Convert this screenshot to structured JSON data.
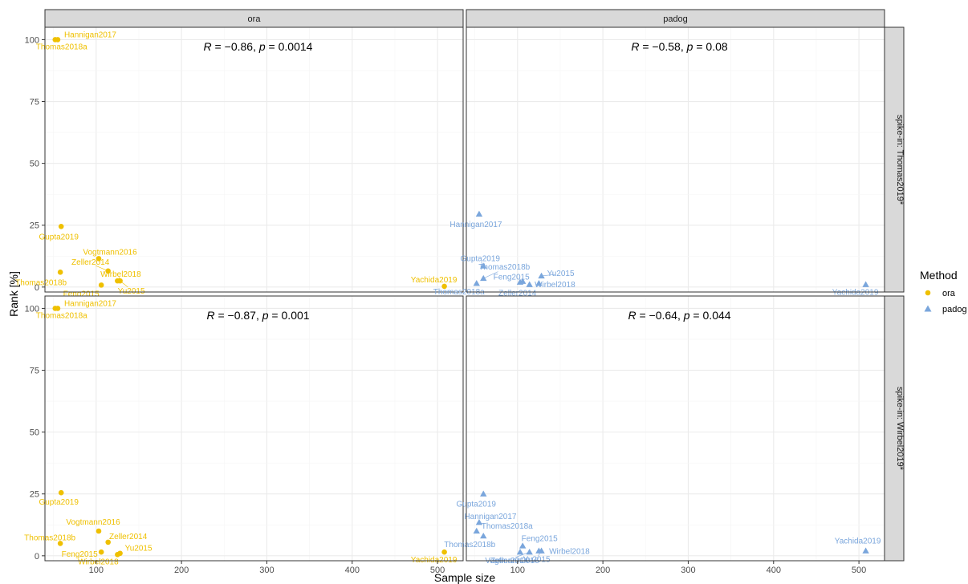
{
  "chart_data": {
    "type": "scatter",
    "xlabel": "Sample size",
    "ylabel": "Rank [%]",
    "xlim": [
      40,
      530
    ],
    "ylim": [
      -2,
      105
    ],
    "x_ticks": [
      100,
      200,
      300,
      400,
      500
    ],
    "y_ticks": [
      0,
      25,
      50,
      75,
      100
    ],
    "grid": true,
    "column_facets": [
      "ora",
      "padog"
    ],
    "row_facets": [
      "spike-in: Thomas2019*",
      "spike-in: Wirbel2019*"
    ],
    "legend": {
      "title": "Method",
      "position": "right",
      "entries": [
        {
          "name": "ora",
          "color": "#EFC000",
          "shape": "circle"
        },
        {
          "name": "padog",
          "color": "#7AA6DC",
          "shape": "triangle"
        }
      ]
    },
    "panels": [
      {
        "col": "ora",
        "row": "spike-in: Thomas2019*",
        "annotation": {
          "r": "−0.86",
          "p": "0.0014"
        },
        "points": [
          {
            "label": "Hannigan2017",
            "x": 55,
            "y": 100
          },
          {
            "label": "Thomas2018a",
            "x": 52,
            "y": 100
          },
          {
            "label": "Gupta2019",
            "x": 59,
            "y": 24.5
          },
          {
            "label": "Vogtmann2016",
            "x": 103,
            "y": 11.5
          },
          {
            "label": "Zeller2014",
            "x": 114,
            "y": 6.5
          },
          {
            "label": "Wirbel2018",
            "x": 125,
            "y": 2.5
          },
          {
            "label": "Thomas2018b",
            "x": 58,
            "y": 6
          },
          {
            "label": "Yu2015",
            "x": 128,
            "y": 2.5
          },
          {
            "label": "Feng2015",
            "x": 106,
            "y": 0.8
          },
          {
            "label": "Yachida2019",
            "x": 508,
            "y": 0.3
          }
        ]
      },
      {
        "col": "padog",
        "row": "spike-in: Thomas2019*",
        "annotation": {
          "r": "−0.58",
          "p": "0.08"
        },
        "points": [
          {
            "label": "Hannigan2017",
            "x": 55,
            "y": 29.5
          },
          {
            "label": "Gupta2019",
            "x": 60,
            "y": 8.5
          },
          {
            "label": "Thomas2018b",
            "x": 60,
            "y": 3.5
          },
          {
            "label": "Yu2015",
            "x": 128,
            "y": 4.5
          },
          {
            "label": "Feng2015",
            "x": 106,
            "y": 2.3
          },
          {
            "label": "Thomas2018a",
            "x": 52,
            "y": 1.5
          },
          {
            "label": "Wirbel2018",
            "x": 125,
            "y": 1.5
          },
          {
            "label": "Zeller2014",
            "x": 114,
            "y": 1
          },
          {
            "label": "Vogtmann2016",
            "x": 103,
            "y": 2
          },
          {
            "label": "Yachida2019",
            "x": 508,
            "y": 1
          }
        ]
      },
      {
        "col": "ora",
        "row": "spike-in: Wirbel2019*",
        "annotation": {
          "r": "−0.87",
          "p": "0.001"
        },
        "points": [
          {
            "label": "Hannigan2017",
            "x": 55,
            "y": 100
          },
          {
            "label": "Thomas2018a",
            "x": 52,
            "y": 100
          },
          {
            "label": "Gupta2019",
            "x": 59,
            "y": 25.5
          },
          {
            "label": "Vogtmann2016",
            "x": 103,
            "y": 10
          },
          {
            "label": "Thomas2018b",
            "x": 58,
            "y": 5
          },
          {
            "label": "Zeller2014",
            "x": 114,
            "y": 5.5
          },
          {
            "label": "Feng2015",
            "x": 106,
            "y": 1.5
          },
          {
            "label": "Yu2015",
            "x": 128,
            "y": 1
          },
          {
            "label": "Wirbel2018",
            "x": 125,
            "y": 0.5
          },
          {
            "label": "Yachida2019",
            "x": 508,
            "y": 1.5
          }
        ]
      },
      {
        "col": "padog",
        "row": "spike-in: Wirbel2019*",
        "annotation": {
          "r": "−0.64",
          "p": "0.044"
        },
        "points": [
          {
            "label": "Gupta2019",
            "x": 60,
            "y": 25
          },
          {
            "label": "Hannigan2017",
            "x": 55,
            "y": 13.5
          },
          {
            "label": "Thomas2018a",
            "x": 52,
            "y": 10
          },
          {
            "label": "Thomas2018b",
            "x": 60,
            "y": 8
          },
          {
            "label": "Feng2015",
            "x": 106,
            "y": 4
          },
          {
            "label": "Wirbel2018",
            "x": 125,
            "y": 2
          },
          {
            "label": "Vogtmann2016",
            "x": 103,
            "y": 1.5
          },
          {
            "label": "Zeller2014",
            "x": 114,
            "y": 1.5
          },
          {
            "label": "Yu2015",
            "x": 128,
            "y": 2
          },
          {
            "label": "Yachida2019",
            "x": 508,
            "y": 2
          }
        ]
      }
    ]
  }
}
